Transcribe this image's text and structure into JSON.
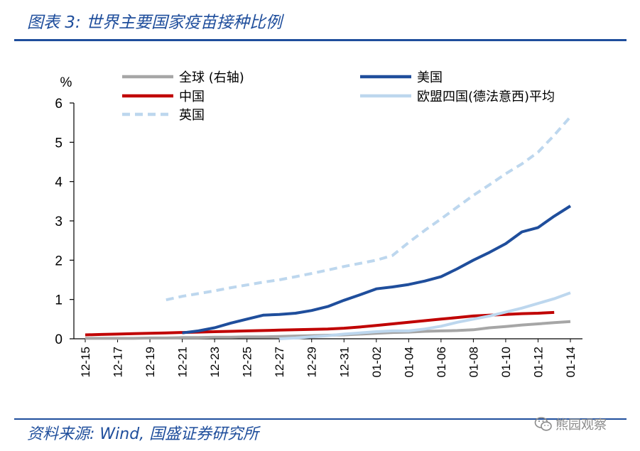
{
  "header": {
    "title": "图表 3:  世界主要国家疫苗接种比例"
  },
  "footer": {
    "source": "资料来源: Wind, 国盛证券研究所",
    "watermark": "熊园观察"
  },
  "colors": {
    "global": "#a6a6a6",
    "us": "#1f4e9c",
    "china": "#c00000",
    "eu4": "#bdd7ee",
    "uk": "#bdd7ee",
    "title": "#1f4e9c"
  },
  "chart_data": {
    "type": "line",
    "title": "",
    "ylabel": "%",
    "ylim": [
      0,
      6
    ],
    "yticks": [
      0,
      1,
      2,
      3,
      4,
      5,
      6
    ],
    "grid": false,
    "legend_placement": "top",
    "x": [
      "12-15",
      "12-16",
      "12-17",
      "12-18",
      "12-19",
      "12-20",
      "12-21",
      "12-22",
      "12-23",
      "12-24",
      "12-25",
      "12-26",
      "12-27",
      "12-28",
      "12-29",
      "12-30",
      "12-31",
      "01-01",
      "01-02",
      "01-03",
      "01-04",
      "01-05",
      "01-06",
      "01-07",
      "01-08",
      "01-09",
      "01-10",
      "01-11",
      "01-12",
      "01-13",
      "01-14"
    ],
    "xticklabels": [
      "12-15",
      "12-17",
      "12-19",
      "12-21",
      "12-23",
      "12-25",
      "12-27",
      "12-29",
      "12-31",
      "01-02",
      "01-04",
      "01-06",
      "01-08",
      "01-10",
      "01-12",
      "01-14"
    ],
    "series": [
      {
        "name": "全球 (右轴)",
        "key": "global",
        "style": "solid",
        "values": [
          0.01,
          0.01,
          0.01,
          0.01,
          0.02,
          0.02,
          0.03,
          0.03,
          0.04,
          0.04,
          0.05,
          0.05,
          0.06,
          0.07,
          0.08,
          0.09,
          0.1,
          0.12,
          0.14,
          0.16,
          0.17,
          0.19,
          0.2,
          0.21,
          0.23,
          0.28,
          0.31,
          0.35,
          0.38,
          0.41,
          0.44
        ]
      },
      {
        "name": "美国",
        "key": "us",
        "style": "solid",
        "values": [
          null,
          null,
          null,
          null,
          null,
          null,
          0.15,
          0.2,
          0.28,
          0.4,
          0.5,
          0.6,
          0.62,
          0.65,
          0.72,
          0.82,
          0.98,
          1.12,
          1.27,
          1.32,
          1.38,
          1.47,
          1.58,
          1.78,
          2.0,
          2.2,
          2.42,
          2.72,
          2.83,
          3.12,
          3.38
        ]
      },
      {
        "name": "中国",
        "key": "china",
        "style": "solid",
        "values": [
          0.1,
          0.11,
          0.12,
          0.13,
          0.14,
          0.15,
          0.16,
          0.17,
          0.18,
          0.19,
          0.2,
          0.21,
          0.22,
          0.23,
          0.24,
          0.25,
          0.27,
          0.3,
          0.34,
          0.38,
          0.42,
          0.46,
          0.5,
          0.54,
          0.58,
          0.6,
          0.62,
          0.64,
          0.65,
          0.67,
          null
        ]
      },
      {
        "name": "欧盟四国(德法意西)平均",
        "key": "eu4",
        "style": "solid",
        "values": [
          null,
          null,
          null,
          null,
          null,
          null,
          null,
          null,
          null,
          null,
          null,
          null,
          0.0,
          0.02,
          0.05,
          0.08,
          0.12,
          0.15,
          0.18,
          0.2,
          0.2,
          0.25,
          0.32,
          0.42,
          0.5,
          0.58,
          0.68,
          0.78,
          0.9,
          1.02,
          1.17
        ]
      },
      {
        "name": "英国",
        "key": "uk",
        "style": "dashed",
        "values": [
          null,
          null,
          null,
          null,
          null,
          0.99,
          1.08,
          1.15,
          1.22,
          1.3,
          1.37,
          1.44,
          1.5,
          1.58,
          1.66,
          1.75,
          1.84,
          1.92,
          2.0,
          2.12,
          2.45,
          2.76,
          3.05,
          3.35,
          3.65,
          3.92,
          4.2,
          4.45,
          4.75,
          5.18,
          5.65
        ]
      }
    ]
  }
}
